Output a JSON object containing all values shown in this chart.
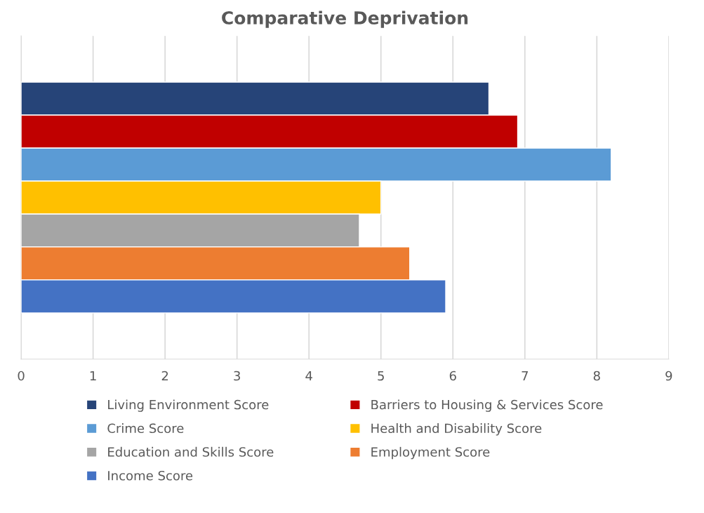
{
  "chart_data": {
    "type": "bar",
    "orientation": "horizontal",
    "title": "Comparative Deprivation",
    "categories": [
      null
    ],
    "series": [
      {
        "name": "Living Environment Score",
        "color": "#264478",
        "values": [
          6.5
        ]
      },
      {
        "name": "Barriers to Housing & Services Score",
        "color": "#c00000",
        "values": [
          6.9
        ]
      },
      {
        "name": "Crime Score",
        "color": "#5b9bd5",
        "values": [
          8.2
        ]
      },
      {
        "name": "Health and Disability Score",
        "color": "#ffc000",
        "values": [
          5.0
        ]
      },
      {
        "name": "Education and Skills Score",
        "color": "#a5a5a5",
        "values": [
          4.7
        ]
      },
      {
        "name": "Employment Score",
        "color": "#ed7d31",
        "values": [
          5.4
        ]
      },
      {
        "name": "Income Score",
        "color": "#4472c4",
        "values": [
          5.9
        ]
      }
    ],
    "xlim": [
      0,
      9
    ],
    "xticks": [
      0,
      1,
      2,
      3,
      4,
      5,
      6,
      7,
      8,
      9
    ],
    "grid": "x",
    "legend": "bottom"
  }
}
